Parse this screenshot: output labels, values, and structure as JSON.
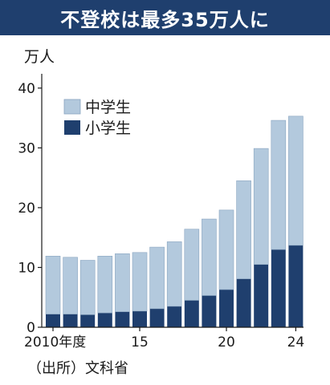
{
  "title": "不登校は最多35万人に",
  "unit_label": "万人",
  "source": "（出所）文科省",
  "chart_data": {
    "type": "bar",
    "stacked": true,
    "x": [
      2010,
      2011,
      2012,
      2013,
      2014,
      2015,
      2016,
      2017,
      2018,
      2019,
      2020,
      2021,
      2022,
      2023,
      2024
    ],
    "x_tick_labels": [
      {
        "x": 2010,
        "label": "2010年度"
      },
      {
        "x": 2015,
        "label": "15"
      },
      {
        "x": 2020,
        "label": "20"
      },
      {
        "x": 2024,
        "label": "24"
      }
    ],
    "series": [
      {
        "name": "小学生",
        "color": "#1f3f6e",
        "values": [
          2.2,
          2.2,
          2.1,
          2.4,
          2.6,
          2.7,
          3.1,
          3.5,
          4.5,
          5.3,
          6.3,
          8.1,
          10.5,
          13.0,
          13.7
        ]
      },
      {
        "name": "中学生",
        "color": "#b3c9dd",
        "values": [
          9.7,
          9.5,
          9.1,
          9.5,
          9.7,
          9.8,
          10.3,
          10.8,
          11.9,
          12.8,
          13.3,
          16.4,
          19.4,
          21.6,
          21.6
        ]
      }
    ],
    "legend_order": [
      "中学生",
      "小学生"
    ],
    "legend_position": "top-left",
    "yticks": [
      0,
      10,
      20,
      30,
      40
    ],
    "ylim": [
      0,
      44
    ],
    "grid": false,
    "xlabel": "",
    "ylabel": "万人"
  }
}
